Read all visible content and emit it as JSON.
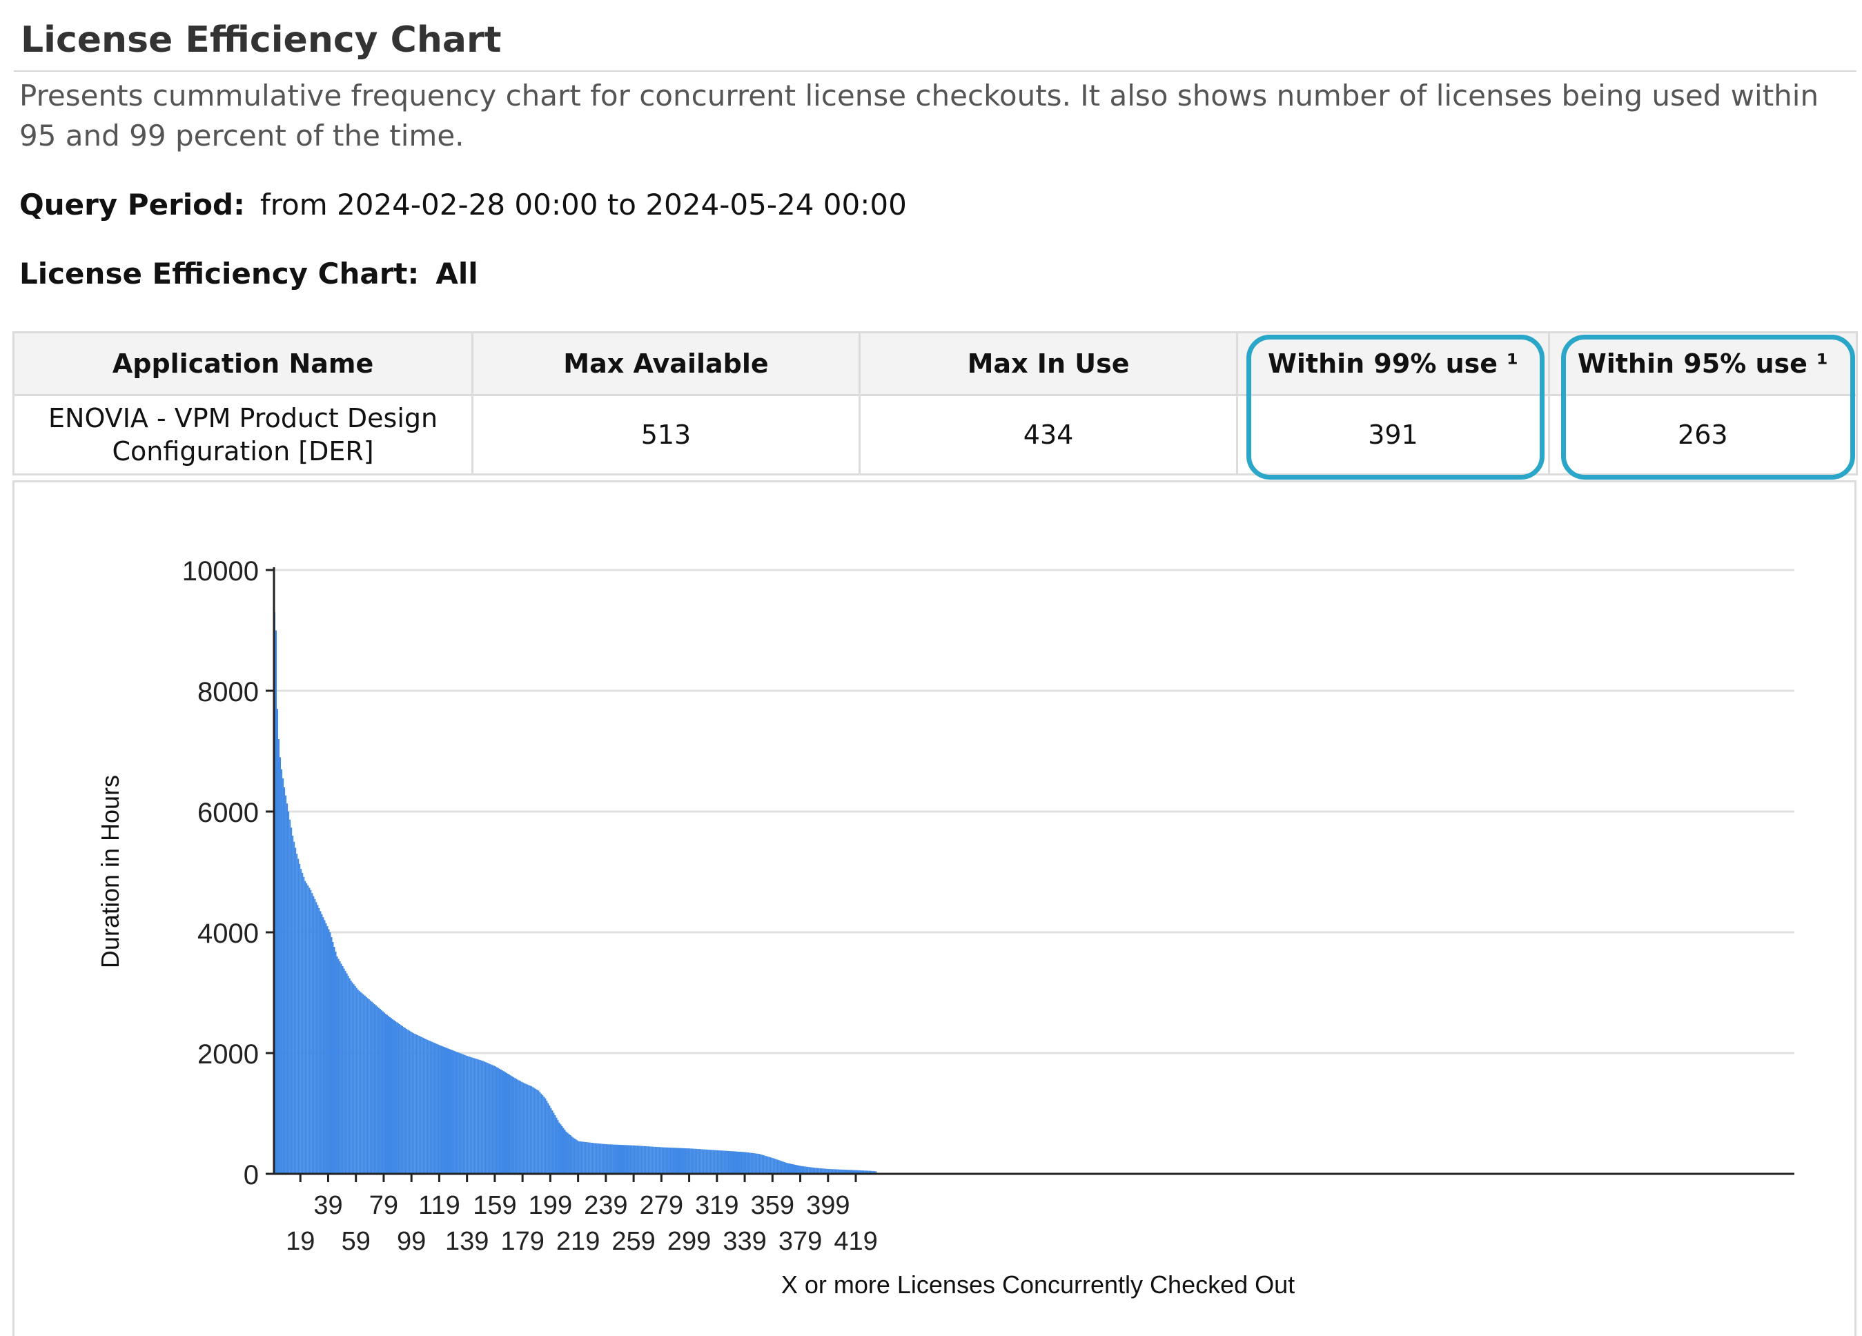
{
  "header": {
    "title": "License Efficiency Chart",
    "description": "Presents cummulative frequency chart for concurrent license checkouts. It also shows number of licenses being used within 95 and 99 percent of the time."
  },
  "query": {
    "label": "Query Period:",
    "value": "from 2024-02-28 00:00 to  2024-05-24 00:00"
  },
  "chart_heading": {
    "label": "License Efficiency Chart:",
    "value": "All"
  },
  "table": {
    "headers": [
      "Application Name",
      "Max Available",
      "Max In Use",
      "Within 99% use ¹",
      "Within 95% use ¹"
    ],
    "rows": [
      {
        "app_name_line1": "ENOVIA - VPM Product Design",
        "app_name_line2": "Configuration  [DER]",
        "max_available": "513",
        "max_in_use": "434",
        "within_99": "391",
        "within_95": "263"
      }
    ]
  },
  "colors": {
    "bar": "#3f88e6",
    "highlight": "#2aa6c9",
    "grid": "#e0e0e0"
  },
  "chart_data": {
    "type": "bar",
    "xlabel": "X or more Licenses Concurrently Checked Out",
    "ylabel": "Duration in Hours",
    "ylim": [
      0,
      10000
    ],
    "yticks": [
      0,
      2000,
      4000,
      6000,
      8000,
      10000
    ],
    "xtick_labels_upper": [
      "39",
      "79",
      "119",
      "159",
      "199",
      "239",
      "279",
      "319",
      "359",
      "399"
    ],
    "xtick_labels_lower": [
      "19",
      "59",
      "99",
      "139",
      "179",
      "219",
      "259",
      "299",
      "339",
      "379",
      "419"
    ],
    "x_start": 0,
    "x_end": 434,
    "grid": true,
    "legend": "none",
    "curve_points": [
      [
        0,
        9300
      ],
      [
        1,
        9000
      ],
      [
        2,
        7700
      ],
      [
        3,
        7200
      ],
      [
        4,
        6900
      ],
      [
        5,
        6700
      ],
      [
        7,
        6400
      ],
      [
        10,
        6000
      ],
      [
        13,
        5600
      ],
      [
        16,
        5300
      ],
      [
        19,
        5050
      ],
      [
        22,
        4850
      ],
      [
        26,
        4700
      ],
      [
        30,
        4500
      ],
      [
        35,
        4250
      ],
      [
        40,
        4000
      ],
      [
        45,
        3600
      ],
      [
        50,
        3400
      ],
      [
        55,
        3200
      ],
      [
        60,
        3050
      ],
      [
        65,
        2950
      ],
      [
        70,
        2850
      ],
      [
        75,
        2750
      ],
      [
        80,
        2650
      ],
      [
        85,
        2560
      ],
      [
        90,
        2480
      ],
      [
        95,
        2400
      ],
      [
        100,
        2330
      ],
      [
        110,
        2220
      ],
      [
        119,
        2130
      ],
      [
        130,
        2030
      ],
      [
        139,
        1950
      ],
      [
        150,
        1870
      ],
      [
        159,
        1780
      ],
      [
        165,
        1700
      ],
      [
        170,
        1630
      ],
      [
        175,
        1560
      ],
      [
        180,
        1500
      ],
      [
        185,
        1450
      ],
      [
        190,
        1380
      ],
      [
        195,
        1250
      ],
      [
        200,
        1050
      ],
      [
        205,
        850
      ],
      [
        210,
        700
      ],
      [
        215,
        600
      ],
      [
        219,
        540
      ],
      [
        230,
        510
      ],
      [
        239,
        490
      ],
      [
        259,
        470
      ],
      [
        279,
        440
      ],
      [
        299,
        420
      ],
      [
        319,
        390
      ],
      [
        339,
        360
      ],
      [
        349,
        330
      ],
      [
        359,
        260
      ],
      [
        369,
        180
      ],
      [
        379,
        130
      ],
      [
        389,
        100
      ],
      [
        399,
        80
      ],
      [
        409,
        70
      ],
      [
        419,
        60
      ],
      [
        429,
        50
      ],
      [
        434,
        40
      ]
    ]
  }
}
